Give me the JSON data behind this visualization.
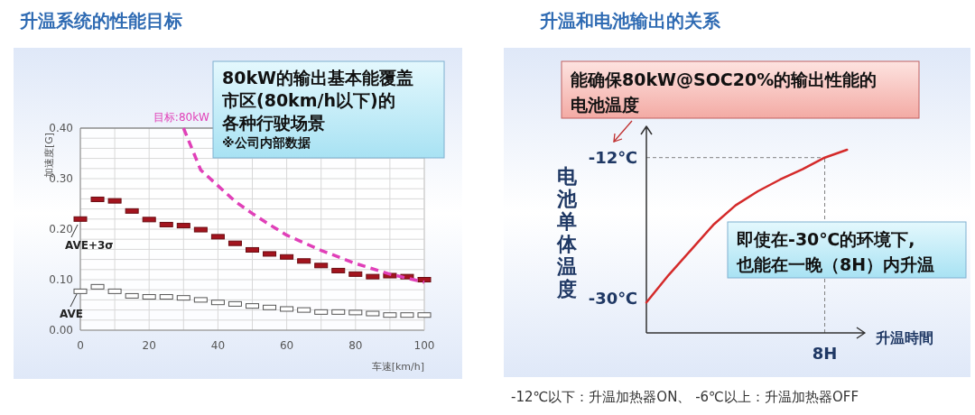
{
  "chart_data": [
    {
      "type": "scatter",
      "title": "升温系统的性能目标",
      "xlabel": "车速[km/h]",
      "ylabel": "加速度[G]",
      "x": [
        0,
        5,
        10,
        15,
        20,
        25,
        30,
        35,
        40,
        45,
        50,
        55,
        60,
        65,
        70,
        75,
        80,
        85,
        90,
        95,
        100
      ],
      "series": [
        {
          "name": "AVE+3σ",
          "color": "#a3141e",
          "values": [
            0.22,
            0.259,
            0.256,
            0.236,
            0.219,
            0.209,
            0.207,
            0.199,
            0.185,
            0.172,
            0.159,
            0.151,
            0.145,
            0.137,
            0.128,
            0.118,
            0.111,
            0.106,
            0.108,
            0.106,
            0.1
          ]
        },
        {
          "name": "AVE",
          "color": "#ffffff",
          "values": [
            0.077,
            0.086,
            0.077,
            0.068,
            0.066,
            0.066,
            0.064,
            0.06,
            0.055,
            0.052,
            0.048,
            0.045,
            0.042,
            0.04,
            0.036,
            0.036,
            0.035,
            0.033,
            0.03,
            0.03,
            0.03
          ]
        },
        {
          "name": "目标:80kW",
          "type": "line",
          "line_style": "dashed",
          "color": "#e040b8",
          "x": [
            30,
            35,
            40,
            45,
            50,
            55,
            60,
            70,
            80,
            90,
            100
          ],
          "values": [
            0.4,
            0.317,
            0.286,
            0.255,
            0.231,
            0.209,
            0.188,
            0.158,
            0.132,
            0.111,
            0.095
          ]
        }
      ],
      "xlim": [
        0,
        100
      ],
      "ylim": [
        0,
        0.4
      ],
      "xticks": [
        0,
        {
          "value": 10,
          "label": null
        },
        20,
        {
          "value": 30,
          "label": null
        },
        40,
        {
          "value": 50,
          "label": null
        },
        60,
        {
          "value": 70,
          "label": null
        },
        80,
        {
          "value": 90,
          "label": null
        },
        100
      ],
      "yticks": [
        {
          "value": 0,
          "label": "0.00"
        },
        {
          "value": 0.02,
          "label": null
        },
        {
          "value": 0.04,
          "label": null
        },
        {
          "value": 0.06,
          "label": null
        },
        {
          "value": 0.08,
          "label": null
        },
        {
          "value": 0.1,
          "label": "0.10"
        },
        {
          "value": 0.12,
          "label": null
        },
        {
          "value": 0.14,
          "label": null
        },
        {
          "value": 0.16,
          "label": null
        },
        {
          "value": 0.18,
          "label": null
        },
        {
          "value": 0.2,
          "label": "0.20"
        },
        {
          "value": 0.22,
          "label": null
        },
        {
          "value": 0.24,
          "label": null
        },
        {
          "value": 0.26,
          "label": null
        },
        {
          "value": 0.28,
          "label": null
        },
        {
          "value": 0.3,
          "label": "0.30"
        },
        {
          "value": 0.32,
          "label": null
        },
        {
          "value": 0.34,
          "label": null
        },
        {
          "value": 0.36,
          "label": null
        },
        {
          "value": 0.38,
          "label": null
        },
        {
          "value": 0.4,
          "label": "0.40"
        }
      ],
      "grid": true,
      "annotations": [
        "80kW的输出基本能覆盖市区(80km/h以下)的各种行驶场景",
        "※公司内部数据"
      ]
    },
    {
      "type": "line",
      "title": "升温和电池输出的关系",
      "xlabel": "升温時間",
      "ylabel": "电池单体温度",
      "categories": [
        null,
        null,
        null,
        null,
        null,
        null,
        null,
        null,
        "8H",
        null
      ],
      "series": [
        {
          "color": "#d42a2a",
          "values": [
            -30.5,
            -27.0,
            -23.8,
            -20.6,
            -18.1,
            -16.3,
            -14.8,
            -13.5,
            -12.0,
            -11.0
          ]
        }
      ],
      "ylim": [
        -34.4,
        -8
      ],
      "yticks": [
        {
          "value": -30,
          "label": "-30℃"
        },
        {
          "value": -12,
          "label": "-12℃"
        }
      ],
      "ref_lines": [
        {
          "axis": "y",
          "value": -12,
          "color": "#808080",
          "line_style": "dashed"
        },
        {
          "axis": "x",
          "value": "8H",
          "color": "#808080",
          "line_style": "dashed"
        }
      ],
      "annotations": [
        "能确保80kW@SOC20%的输出性能的电池温度",
        "即使在-30℃的环境下,也能在一晚（8H）内升温",
        "-12℃以下：升温加热器ON、 -6℃以上：升温加热器OFF"
      ]
    }
  ]
}
